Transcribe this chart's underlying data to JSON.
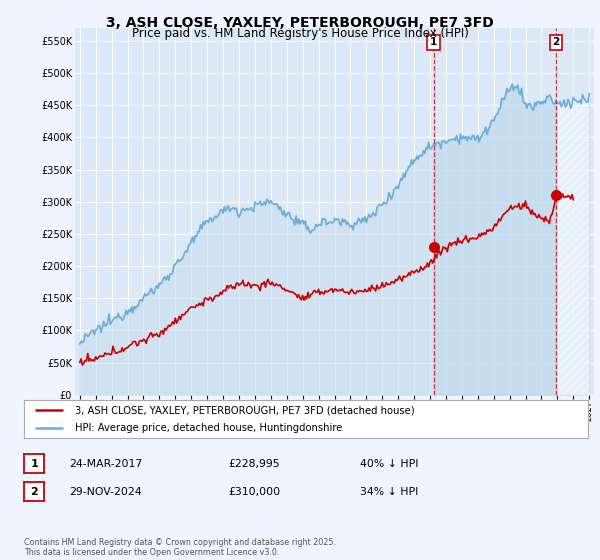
{
  "title": "3, ASH CLOSE, YAXLEY, PETERBOROUGH, PE7 3FD",
  "subtitle": "Price paid vs. HM Land Registry's House Price Index (HPI)",
  "ylabel_ticks": [
    "£0",
    "£50K",
    "£100K",
    "£150K",
    "£200K",
    "£250K",
    "£300K",
    "£350K",
    "£400K",
    "£450K",
    "£500K",
    "£550K"
  ],
  "ytick_values": [
    0,
    50000,
    100000,
    150000,
    200000,
    250000,
    300000,
    350000,
    400000,
    450000,
    500000,
    550000
  ],
  "ylim": [
    0,
    570000
  ],
  "xlim_left": 1994.7,
  "xlim_right": 2027.3,
  "background_color": "#f0f4ff",
  "plot_bg": "#dce8f5",
  "fill_color": "#c5dff0",
  "hpi_color": "#6aaed6",
  "price_color": "#cc0000",
  "marker1_date_x": 2017.22,
  "marker2_date_x": 2024.92,
  "marker1_price": 228995,
  "marker2_price": 310000,
  "legend_entry1": "3, ASH CLOSE, YAXLEY, PETERBOROUGH, PE7 3FD (detached house)",
  "legend_entry2": "HPI: Average price, detached house, Huntingdonshire",
  "table_row1": [
    "1",
    "24-MAR-2017",
    "£228,995",
    "40% ↓ HPI"
  ],
  "table_row2": [
    "2",
    "29-NOV-2024",
    "£310,000",
    "34% ↓ HPI"
  ],
  "footnote": "Contains HM Land Registry data © Crown copyright and database right 2025.\nThis data is licensed under the Open Government Licence v3.0.",
  "title_fontsize": 10,
  "subtitle_fontsize": 8.5
}
